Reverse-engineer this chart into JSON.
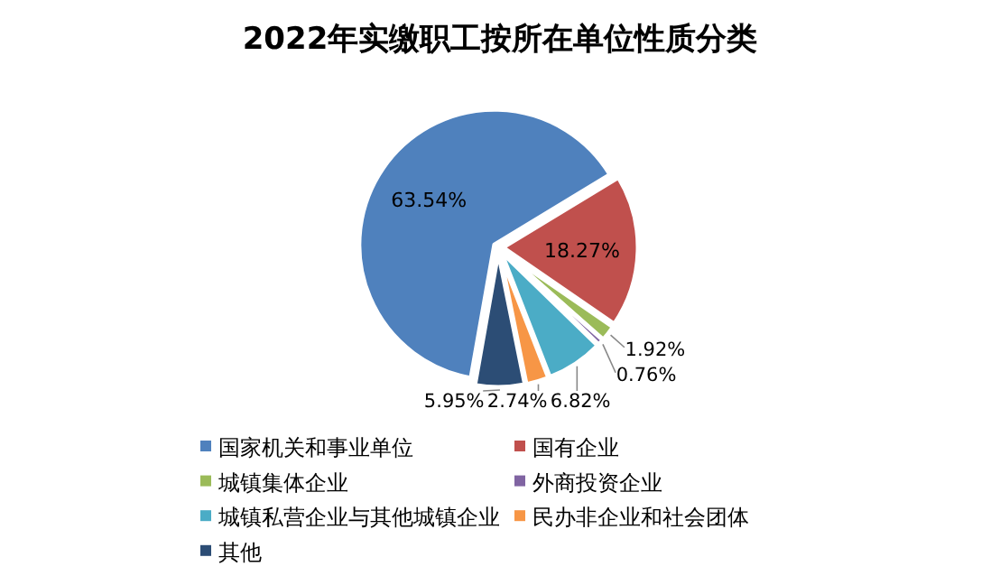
{
  "chart_data": {
    "type": "pie",
    "title": "2022年实缴职工按所在单位性质分类",
    "categories": [
      "国家机关和事业单位",
      "国有企业",
      "城镇集体企业",
      "外商投资企业",
      "城镇私营企业与其他城镇企业",
      "民办非企业和社会团体",
      "其他"
    ],
    "values": [
      63.54,
      18.27,
      1.92,
      0.76,
      6.82,
      2.74,
      5.95
    ],
    "colors": [
      "#4f81bd",
      "#c0504d",
      "#9bbb59",
      "#8064a2",
      "#4bacc6",
      "#f79646",
      "#2c4d75"
    ],
    "value_labels": [
      "63.54%",
      "18.27%",
      "1.92%",
      "0.76%",
      "6.82%",
      "2.74%",
      "5.95%"
    ],
    "legend": "bottom"
  }
}
